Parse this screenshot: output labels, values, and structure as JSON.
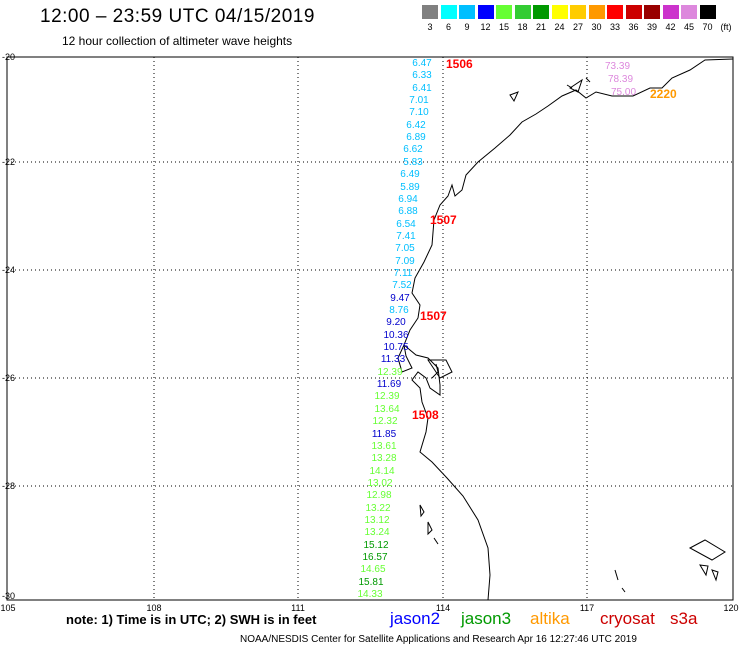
{
  "header": {
    "title": "12:00 – 23:59 UTC 04/15/2019",
    "subtitle": "12 hour collection of altimeter wave heights"
  },
  "legend": {
    "unit": "(ft)",
    "bins": [
      {
        "label": "3",
        "color": "#808080"
      },
      {
        "label": "6",
        "color": "#00ffff"
      },
      {
        "label": "9",
        "color": "#00bfff"
      },
      {
        "label": "12",
        "color": "#0000ff"
      },
      {
        "label": "15",
        "color": "#66ff33"
      },
      {
        "label": "18",
        "color": "#33cc33"
      },
      {
        "label": "21",
        "color": "#009900"
      },
      {
        "label": "24",
        "color": "#ffff00"
      },
      {
        "label": "27",
        "color": "#ffcc00"
      },
      {
        "label": "30",
        "color": "#ff9900"
      },
      {
        "label": "33",
        "color": "#ff0000"
      },
      {
        "label": "36",
        "color": "#cc0000"
      },
      {
        "label": "39",
        "color": "#990000"
      },
      {
        "label": "42",
        "color": "#cc33cc"
      },
      {
        "label": "45",
        "color": "#dd88dd"
      },
      {
        "label": "70",
        "color": "#000000"
      }
    ]
  },
  "axes": {
    "lat_labels": [
      "-20",
      "-22",
      "-24",
      "-26",
      "-28",
      "-30"
    ],
    "lon_labels": [
      "105",
      "108",
      "111",
      "114",
      "117",
      "120"
    ]
  },
  "wave_heights": [
    {
      "v": "6.47",
      "c": "#00bfff"
    },
    {
      "v": "6.33",
      "c": "#00bfff"
    },
    {
      "v": "6.41",
      "c": "#00bfff"
    },
    {
      "v": "7.01",
      "c": "#00bfff"
    },
    {
      "v": "7.10",
      "c": "#00bfff"
    },
    {
      "v": "6.42",
      "c": "#00bfff"
    },
    {
      "v": "6.89",
      "c": "#00bfff"
    },
    {
      "v": "6.62",
      "c": "#00bfff"
    },
    {
      "v": "5.83",
      "c": "#00bfff"
    },
    {
      "v": "6.49",
      "c": "#00bfff"
    },
    {
      "v": "5.89",
      "c": "#00bfff"
    },
    {
      "v": "6.94",
      "c": "#00bfff"
    },
    {
      "v": "6.88",
      "c": "#00bfff"
    },
    {
      "v": "6.54",
      "c": "#00bfff"
    },
    {
      "v": "7.41",
      "c": "#00bfff"
    },
    {
      "v": "7.05",
      "c": "#00bfff"
    },
    {
      "v": "7.09",
      "c": "#00bfff"
    },
    {
      "v": "7.11",
      "c": "#00bfff"
    },
    {
      "v": "7.52",
      "c": "#00bfff"
    },
    {
      "v": "9.47",
      "c": "#0000cc"
    },
    {
      "v": "8.76",
      "c": "#00bfff"
    },
    {
      "v": "9.20",
      "c": "#0000cc"
    },
    {
      "v": "10.36",
      "c": "#0000cc"
    },
    {
      "v": "10.75",
      "c": "#0000cc"
    },
    {
      "v": "11.33",
      "c": "#0000cc"
    },
    {
      "v": "12.39",
      "c": "#66ff33"
    },
    {
      "v": "11.69",
      "c": "#0000cc"
    },
    {
      "v": "12.39",
      "c": "#66ff33"
    },
    {
      "v": "13.64",
      "c": "#66ff33"
    },
    {
      "v": "12.32",
      "c": "#66ff33"
    },
    {
      "v": "11.85",
      "c": "#0000cc"
    },
    {
      "v": "13.61",
      "c": "#66ff33"
    },
    {
      "v": "13.28",
      "c": "#66ff33"
    },
    {
      "v": "14.14",
      "c": "#66ff33"
    },
    {
      "v": "13.02",
      "c": "#66ff33"
    },
    {
      "v": "12.98",
      "c": "#66ff33"
    },
    {
      "v": "13.22",
      "c": "#66ff33"
    },
    {
      "v": "13.12",
      "c": "#66ff33"
    },
    {
      "v": "13.24",
      "c": "#66ff33"
    },
    {
      "v": "15.12",
      "c": "#009900"
    },
    {
      "v": "16.57",
      "c": "#009900"
    },
    {
      "v": "14.65",
      "c": "#66ff33"
    },
    {
      "v": "15.81",
      "c": "#009900"
    },
    {
      "v": "14.33",
      "c": "#66ff33"
    }
  ],
  "pass_labels": [
    {
      "text": "1506",
      "c": "#ff0000"
    },
    {
      "text": "1507",
      "c": "#ff0000"
    },
    {
      "text": "1507",
      "c": "#ff0000"
    },
    {
      "text": "1508",
      "c": "#ff0000"
    },
    {
      "text": "2220",
      "c": "#ff9900"
    }
  ],
  "pink_values": [
    {
      "v": "73.39",
      "c": "#dd88dd"
    },
    {
      "v": "78.39",
      "c": "#dd88dd"
    },
    {
      "v": "75.00",
      "c": "#dd88dd"
    }
  ],
  "footer": {
    "note": "note:  1) Time is in UTC;  2) SWH is in feet",
    "satellites": [
      {
        "name": "jason2",
        "color": "#0000ff"
      },
      {
        "name": "jason3",
        "color": "#009900"
      },
      {
        "name": "altika",
        "color": "#ff9900"
      },
      {
        "name": "cryosat",
        "color": "#cc0000"
      },
      {
        "name": "s3a",
        "color": "#cc0000"
      }
    ],
    "credit": "NOAA/NESDIS Center for Satellite Applications and Research     Apr 16 12:27:46 UTC 2019"
  }
}
